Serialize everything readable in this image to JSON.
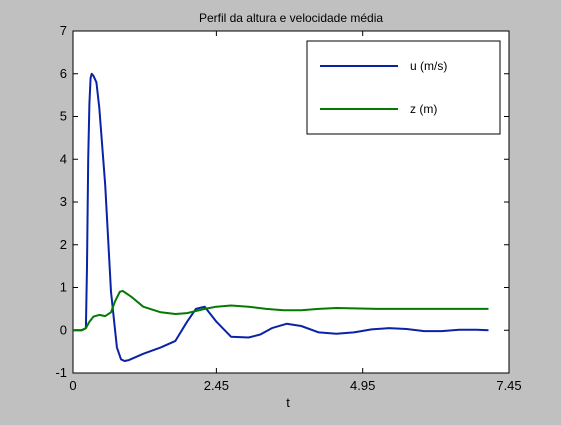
{
  "chart_data": {
    "type": "line",
    "title": "Perfil da altura e velocidade média",
    "xlabel": "t",
    "ylabel": "",
    "xlim": [
      0,
      7.45
    ],
    "ylim": [
      -1,
      7
    ],
    "x_ticks": [
      0,
      2.45,
      4.95,
      7.45
    ],
    "x_tick_labels": [
      "0",
      "2.45",
      "4.95",
      "7.45"
    ],
    "y_ticks": [
      -1,
      0,
      1,
      2,
      3,
      4,
      5,
      6,
      7
    ],
    "y_tick_labels": [
      "-1",
      "0",
      "1",
      "2",
      "3",
      "4",
      "5",
      "6",
      "7"
    ],
    "grid": false,
    "legend_position": "top-right",
    "series": [
      {
        "name": "u (m/s)",
        "color": "#0a23a6",
        "x": [
          0,
          0.15,
          0.22,
          0.24,
          0.26,
          0.28,
          0.3,
          0.32,
          0.35,
          0.4,
          0.45,
          0.55,
          0.65,
          0.75,
          0.82,
          0.88,
          0.95,
          1.2,
          1.5,
          1.75,
          1.95,
          2.1,
          2.25,
          2.45,
          2.7,
          3.0,
          3.2,
          3.4,
          3.65,
          3.9,
          4.2,
          4.5,
          4.8,
          5.1,
          5.4,
          5.7,
          6.0,
          6.3,
          6.6,
          6.9,
          7.1
        ],
        "y": [
          0,
          0,
          0.05,
          1.5,
          4.0,
          5.3,
          5.9,
          6.0,
          5.95,
          5.8,
          5.2,
          3.4,
          0.9,
          -0.4,
          -0.68,
          -0.72,
          -0.7,
          -0.55,
          -0.4,
          -0.25,
          0.2,
          0.5,
          0.55,
          0.2,
          -0.15,
          -0.17,
          -0.1,
          0.05,
          0.15,
          0.1,
          -0.05,
          -0.08,
          -0.05,
          0.02,
          0.05,
          0.03,
          -0.02,
          -0.02,
          0.01,
          0.01,
          0.0
        ]
      },
      {
        "name": "z (m)",
        "color": "#047a04",
        "x": [
          0,
          0.15,
          0.22,
          0.28,
          0.35,
          0.45,
          0.55,
          0.65,
          0.72,
          0.8,
          0.85,
          1.0,
          1.2,
          1.5,
          1.75,
          1.95,
          2.1,
          2.25,
          2.45,
          2.7,
          3.0,
          3.3,
          3.6,
          3.9,
          4.2,
          4.5,
          4.8,
          5.2,
          5.6,
          6.0,
          6.4,
          6.8,
          7.1
        ],
        "y": [
          0,
          0.0,
          0.05,
          0.2,
          0.32,
          0.36,
          0.33,
          0.42,
          0.68,
          0.9,
          0.92,
          0.78,
          0.55,
          0.42,
          0.38,
          0.4,
          0.45,
          0.5,
          0.55,
          0.58,
          0.55,
          0.5,
          0.47,
          0.47,
          0.5,
          0.52,
          0.51,
          0.5,
          0.5,
          0.5,
          0.5,
          0.5,
          0.5
        ]
      }
    ]
  }
}
